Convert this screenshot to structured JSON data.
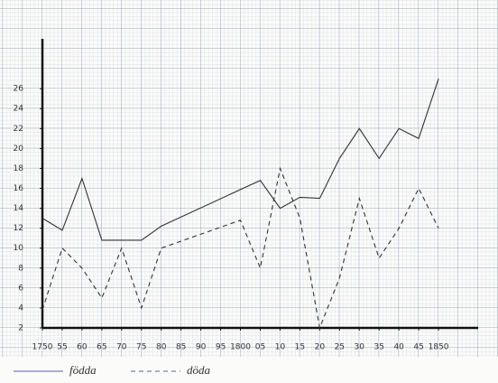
{
  "chart_data": {
    "type": "line",
    "xlim": [
      1750,
      1860
    ],
    "ylim": [
      2,
      31
    ],
    "xticks": [
      {
        "value": 1750,
        "label": "1750"
      },
      {
        "value": 1755,
        "label": "55"
      },
      {
        "value": 1760,
        "label": "60"
      },
      {
        "value": 1765,
        "label": "65"
      },
      {
        "value": 1770,
        "label": "70"
      },
      {
        "value": 1775,
        "label": "75"
      },
      {
        "value": 1780,
        "label": "80"
      },
      {
        "value": 1785,
        "label": "85"
      },
      {
        "value": 1790,
        "label": "90"
      },
      {
        "value": 1795,
        "label": "95"
      },
      {
        "value": 1800,
        "label": "1800"
      },
      {
        "value": 1805,
        "label": "05"
      },
      {
        "value": 1810,
        "label": "10"
      },
      {
        "value": 1815,
        "label": "15"
      },
      {
        "value": 1820,
        "label": "20"
      },
      {
        "value": 1825,
        "label": "25"
      },
      {
        "value": 1830,
        "label": "30"
      },
      {
        "value": 1835,
        "label": "35"
      },
      {
        "value": 1840,
        "label": "40"
      },
      {
        "value": 1845,
        "label": "45"
      },
      {
        "value": 1850,
        "label": "1850"
      }
    ],
    "yticks": [
      2,
      4,
      6,
      8,
      10,
      12,
      14,
      16,
      18,
      20,
      22,
      24,
      26
    ],
    "grid": true,
    "series": [
      {
        "name": "födda",
        "color": "#333333",
        "dash": false,
        "x": [
          1750,
          1755,
          1760,
          1765,
          1775,
          1780,
          1805,
          1810,
          1815,
          1820,
          1825,
          1830,
          1835,
          1840,
          1845,
          1850
        ],
        "values": [
          13,
          11.8,
          17,
          10.8,
          10.8,
          12.2,
          16.8,
          14,
          15.1,
          15,
          19,
          22,
          19,
          22,
          21,
          27
        ]
      },
      {
        "name": "döda",
        "color": "#333333",
        "dash": true,
        "x": [
          1750,
          1755,
          1760,
          1765,
          1770,
          1775,
          1780,
          1800,
          1805,
          1810,
          1815,
          1820,
          1825,
          1830,
          1835,
          1840,
          1845,
          1850
        ],
        "values": [
          3.8,
          10,
          8,
          5,
          10,
          4,
          10,
          12.8,
          8,
          18,
          13,
          2,
          7,
          15,
          9,
          12,
          16,
          12
        ]
      }
    ]
  }
}
